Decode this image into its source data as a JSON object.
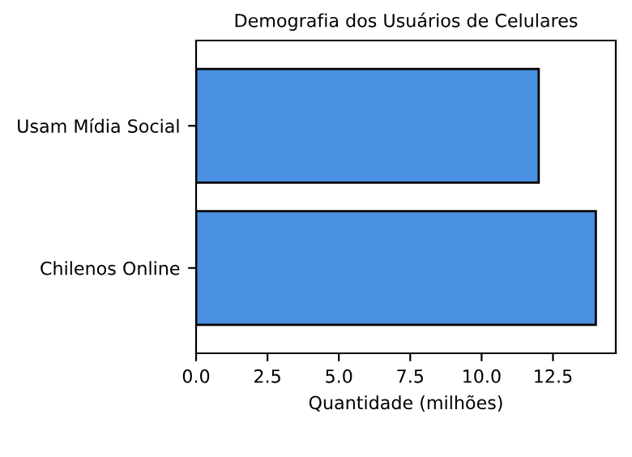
{
  "chart_data": {
    "type": "bar",
    "orientation": "horizontal",
    "title": "Demografia dos Usuários de Celulares",
    "xlabel": "Quantidade (milhões)",
    "categories": [
      "Usam Mídia Social",
      "Chilenos Online"
    ],
    "values": [
      12,
      14
    ],
    "color": "#4a90e2",
    "xlim": [
      0,
      14.7
    ],
    "xticks": [
      {
        "value": 0,
        "label": "0.0"
      },
      2.5,
      {
        "value": 5,
        "label": "5.0"
      },
      7.5,
      {
        "value": 10,
        "label": "10.0"
      },
      12.5
    ],
    "grid": false,
    "legend": false
  }
}
